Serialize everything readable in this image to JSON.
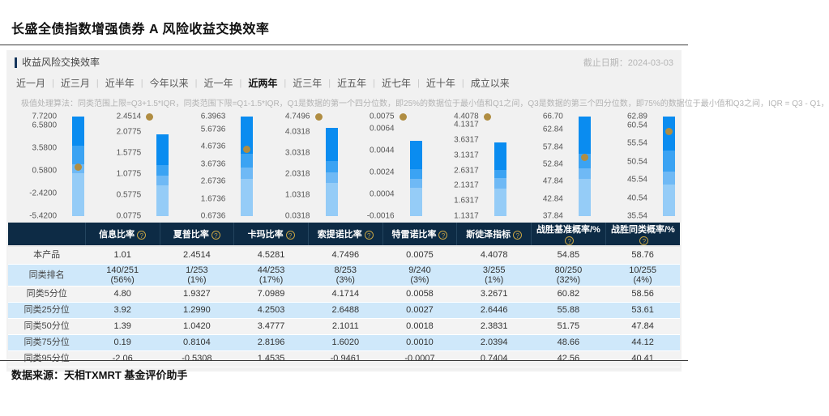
{
  "page": {
    "title": "长盛全债指数增强债券 A 风险收益交换效率",
    "source": "数据来源：天相TXMRT 基金评价助手"
  },
  "panel": {
    "title": "收益风险交换效率",
    "deadline_label": "截止日期：2024-03-03",
    "tabs": [
      "近一月",
      "近三月",
      "近半年",
      "今年以来",
      "近一年",
      "近两年",
      "近三年",
      "近五年",
      "近七年",
      "近十年",
      "成立以来"
    ],
    "active_tab": "近两年",
    "note": "极值处理算法：同类范围上限=Q3+1.5*IQR，同类范围下限=Q1-1.5*IQR，Q1是数据的第一个四分位数，即25%的数据位于最小值和Q1之间，Q3是数据的第三个四分位数，即75%的数据位于最小值和Q3之间，IQR = Q3 - Q1，"
  },
  "colors": {
    "bar_segments": [
      "#0a8cf0",
      "#3ba3f3",
      "#6fb9f5",
      "#95ccf7"
    ],
    "dot": "#b08d42",
    "table_header_bg": "#0d2b45",
    "row_alt_blue": "#cfe8fa",
    "accent_navy": "#16365c",
    "help_icon_gold": "#c9a545"
  },
  "chart_data": {
    "type": "quartile-bar",
    "description": "每个指标一根分位堆叠柱：柱区间为同类范围[下限,上限]，分段边界为同类25/50/75分位，圆点为本产品值（超出柱顶时点置于顶部刻度旁）",
    "charts": [
      {
        "metric": "信息比率",
        "ticks": [
          {
            "label": "7.7200",
            "v": 7.72
          },
          {
            "label": "6.5800",
            "v": 6.58
          },
          {
            "label": "3.5800",
            "v": 3.58
          },
          {
            "label": "0.5800",
            "v": 0.58
          },
          {
            "label": "-2.4200",
            "v": -2.42
          },
          {
            "label": "-5.4200",
            "v": -5.42
          }
        ],
        "bar_top": 7.72,
        "bar_bottom": -5.42,
        "q25": 3.92,
        "q50": 1.39,
        "q75": 0.19,
        "product": 1.01,
        "dot_at_top": false
      },
      {
        "metric": "夏普比率",
        "ticks": [
          {
            "label": "2.4514",
            "v": 2.4514
          },
          {
            "label": "2.0775",
            "v": 2.0775
          },
          {
            "label": "1.5775",
            "v": 1.5775
          },
          {
            "label": "1.0775",
            "v": 1.0775
          },
          {
            "label": "0.5775",
            "v": 0.5775
          },
          {
            "label": "0.0775",
            "v": 0.0775
          }
        ],
        "bar_top": 2.0319,
        "bar_bottom": 0.0775,
        "q25": 1.299,
        "q50": 1.042,
        "q75": 0.8104,
        "product": 2.4514,
        "dot_at_top": true
      },
      {
        "metric": "卡玛比率",
        "ticks": [
          {
            "label": "6.3963",
            "v": 6.3963
          },
          {
            "label": "5.6736",
            "v": 5.6736
          },
          {
            "label": "4.6736",
            "v": 4.6736
          },
          {
            "label": "3.6736",
            "v": 3.6736
          },
          {
            "label": "2.6736",
            "v": 2.6736
          },
          {
            "label": "1.6736",
            "v": 1.6736
          },
          {
            "label": "0.6736",
            "v": 0.6736
          }
        ],
        "bar_top": 6.3963,
        "bar_bottom": 0.6736,
        "q25": 4.2503,
        "q50": 3.4777,
        "q75": 2.8196,
        "product": 4.5281,
        "dot_at_top": false
      },
      {
        "metric": "索提诺比率",
        "ticks": [
          {
            "label": "4.7496",
            "v": 4.7496
          },
          {
            "label": "4.0318",
            "v": 4.0318
          },
          {
            "label": "3.0318",
            "v": 3.0318
          },
          {
            "label": "2.0318",
            "v": 2.0318
          },
          {
            "label": "1.0318",
            "v": 1.0318
          },
          {
            "label": "0.0318",
            "v": 0.0318
          }
        ],
        "bar_top": 4.219,
        "bar_bottom": 0.0318,
        "q25": 2.6488,
        "q50": 2.1011,
        "q75": 1.602,
        "product": 4.7496,
        "dot_at_top": true
      },
      {
        "metric": "特雷诺比率",
        "ticks": [
          {
            "label": "0.0075",
            "v": 0.0075
          },
          {
            "label": "0.0064",
            "v": 0.0064
          },
          {
            "label": "0.0044",
            "v": 0.0044
          },
          {
            "label": "0.0024",
            "v": 0.0024
          },
          {
            "label": "0.0004",
            "v": 0.0004
          },
          {
            "label": "-0.0016",
            "v": -0.0016
          }
        ],
        "bar_top": 0.00525,
        "bar_bottom": -0.0016,
        "q25": 0.0027,
        "q50": 0.0018,
        "q75": 0.001,
        "product": 0.0075,
        "dot_at_top": true
      },
      {
        "metric": "斯徒泽指标",
        "ticks": [
          {
            "label": "4.4078",
            "v": 4.4078
          },
          {
            "label": "4.1317",
            "v": 4.1317
          },
          {
            "label": "3.6317",
            "v": 3.6317
          },
          {
            "label": "3.1317",
            "v": 3.1317
          },
          {
            "label": "2.6317",
            "v": 2.6317
          },
          {
            "label": "2.1317",
            "v": 2.1317
          },
          {
            "label": "1.6317",
            "v": 1.6317
          },
          {
            "label": "1.1317",
            "v": 1.1317
          }
        ],
        "bar_top": 3.5524,
        "bar_bottom": 1.1317,
        "q25": 2.6446,
        "q50": 2.3831,
        "q75": 2.0394,
        "product": 4.4078,
        "dot_at_top": true
      },
      {
        "metric": "战胜基准概率/%",
        "ticks": [
          {
            "label": "66.70",
            "v": 66.7
          },
          {
            "label": "62.84",
            "v": 62.84
          },
          {
            "label": "57.84",
            "v": 57.84
          },
          {
            "label": "52.84",
            "v": 52.84
          },
          {
            "label": "47.84",
            "v": 47.84
          },
          {
            "label": "42.84",
            "v": 42.84
          },
          {
            "label": "37.84",
            "v": 37.84
          }
        ],
        "bar_top": 66.7,
        "bar_bottom": 37.84,
        "q25": 55.88,
        "q50": 51.75,
        "q75": 48.66,
        "product": 54.85,
        "dot_at_top": false
      },
      {
        "metric": "战胜同类概率/%",
        "ticks": [
          {
            "label": "62.89",
            "v": 62.89
          },
          {
            "label": "60.54",
            "v": 60.54
          },
          {
            "label": "55.54",
            "v": 55.54
          },
          {
            "label": "50.54",
            "v": 50.54
          },
          {
            "label": "45.54",
            "v": 45.54
          },
          {
            "label": "40.54",
            "v": 40.54
          },
          {
            "label": "35.54",
            "v": 35.54
          }
        ],
        "bar_top": 62.89,
        "bar_bottom": 35.54,
        "q25": 53.61,
        "q50": 47.84,
        "q75": 44.12,
        "product": 58.76,
        "dot_at_top": false
      }
    ]
  },
  "table": {
    "columns": [
      "信息比率",
      "夏普比率",
      "卡玛比率",
      "索提诺比率",
      "特雷诺比率",
      "斯徒泽指标",
      "战胜基准概率/%",
      "战胜同类概率/%"
    ],
    "help_icon": "?",
    "rows": [
      {
        "label": "本产品",
        "tall": false,
        "blue": false,
        "cells": [
          "1.01",
          "2.4514",
          "4.5281",
          "4.7496",
          "0.0075",
          "4.4078",
          "54.85",
          "58.76"
        ]
      },
      {
        "label": "同类排名",
        "tall": true,
        "blue": true,
        "cells": [
          "140/251\n(56%)",
          "1/253\n(1%)",
          "44/253\n(17%)",
          "8/253\n(3%)",
          "9/240\n(3%)",
          "3/255\n(1%)",
          "80/250\n(32%)",
          "10/255\n(4%)"
        ]
      },
      {
        "label": "同类5分位",
        "tall": false,
        "blue": false,
        "cells": [
          "4.80",
          "1.9327",
          "7.0989",
          "4.1714",
          "0.0058",
          "3.2671",
          "60.82",
          "58.56"
        ]
      },
      {
        "label": "同类25分位",
        "tall": false,
        "blue": true,
        "cells": [
          "3.92",
          "1.2990",
          "4.2503",
          "2.6488",
          "0.0027",
          "2.6446",
          "55.88",
          "53.61"
        ]
      },
      {
        "label": "同类50分位",
        "tall": false,
        "blue": false,
        "cells": [
          "1.39",
          "1.0420",
          "3.4777",
          "2.1011",
          "0.0018",
          "2.3831",
          "51.75",
          "47.84"
        ]
      },
      {
        "label": "同类75分位",
        "tall": false,
        "blue": true,
        "cells": [
          "0.19",
          "0.8104",
          "2.8196",
          "1.6020",
          "0.0010",
          "2.0394",
          "48.66",
          "44.12"
        ]
      },
      {
        "label": "同类95分位",
        "tall": false,
        "blue": false,
        "cells": [
          "-2.06",
          "-0.5308",
          "1.4535",
          "-0.9461",
          "-0.0007",
          "0.7404",
          "42.56",
          "40.41"
        ]
      }
    ]
  }
}
